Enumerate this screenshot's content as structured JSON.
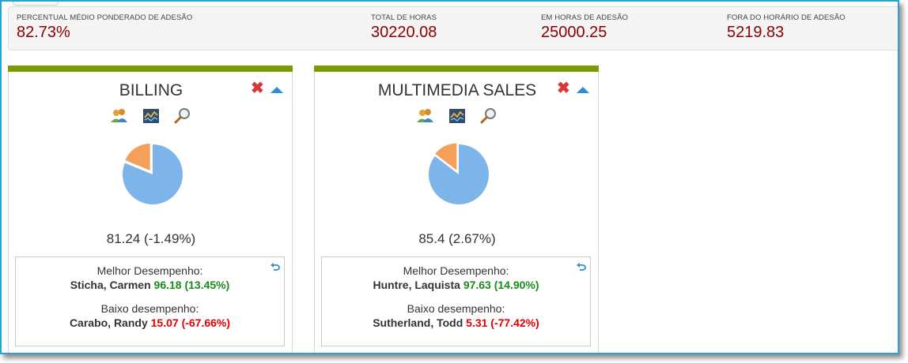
{
  "summary": {
    "metrics": [
      {
        "label": "PERCENTUAL MÉDIO PONDERADO DE ADESÃO",
        "value": "82.73%"
      },
      {
        "label": "TOTAL DE HORAS",
        "value": "30220.08"
      },
      {
        "label": "EM HORAS DE ADESÃO",
        "value": "25000.25"
      },
      {
        "label": "FORA DO HORÁRIO DE ADESÃO",
        "value": "5219.83"
      }
    ]
  },
  "colors": {
    "accent_bar": "#7a9a01",
    "metric_value": "#8b0000",
    "pie_main": "#7db4ea",
    "pie_slice": "#f5a05a",
    "good": "#1a8a1a",
    "bad": "#e00000"
  },
  "cards": [
    {
      "title": "BILLING",
      "icons": [
        "close-icon",
        "collapse-up-icon",
        "people-icon",
        "trend-chart-icon",
        "magnifier-icon",
        "undo-icon"
      ],
      "adherence_fraction": 0.8124,
      "score_text": "81.24 (-1.49%)",
      "best_label": "Melhor Desempenho:",
      "best_name": "Sticha, Carmen",
      "best_value": "96.18 (13.45%)",
      "low_label": "Baixo desempenho:",
      "low_name": "Carabo, Randy",
      "low_value": "15.07 (-67.66%)"
    },
    {
      "title": "MULTIMEDIA SALES",
      "icons": [
        "close-icon",
        "collapse-up-icon",
        "people-icon",
        "trend-chart-icon",
        "magnifier-icon",
        "undo-icon"
      ],
      "adherence_fraction": 0.854,
      "score_text": "85.4 (2.67%)",
      "best_label": "Melhor Desempenho:",
      "best_name": "Huntre, Laquista",
      "best_value": "97.63 (14.90%)",
      "low_label": "Baixo desempenho:",
      "low_name": "Sutherland, Todd",
      "low_value": "5.31 (-77.42%)"
    }
  ]
}
